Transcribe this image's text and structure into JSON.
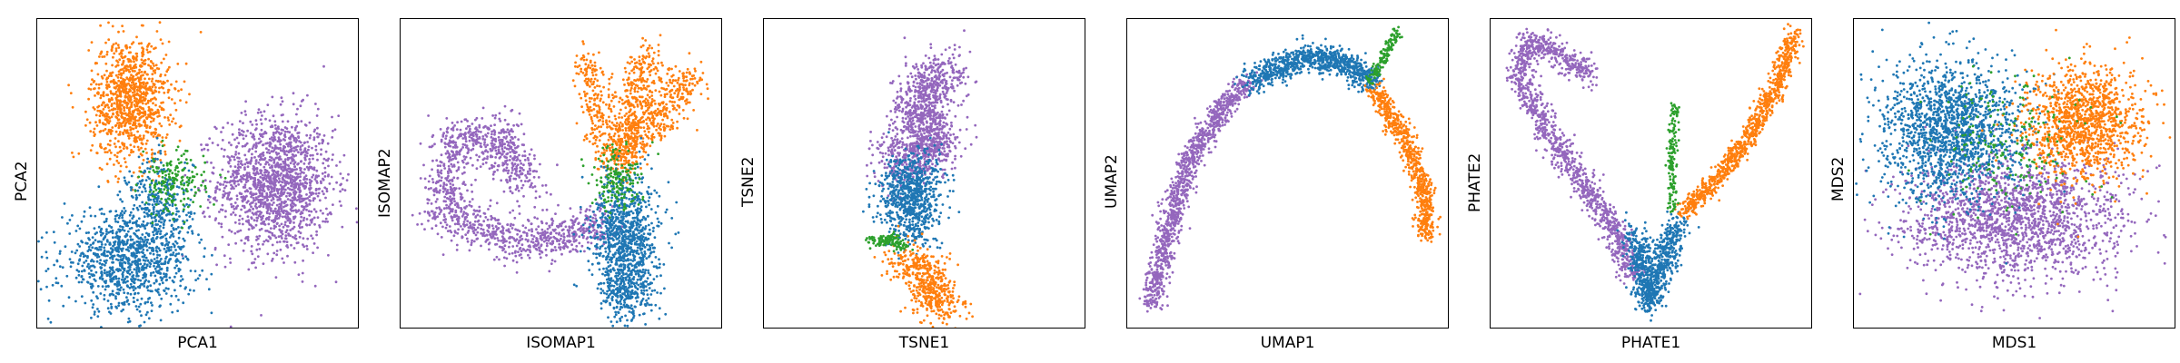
{
  "colors": {
    "blue": "#1f77b4",
    "orange": "#ff7f0e",
    "green": "#2ca02c",
    "purple": "#9467bd"
  },
  "chart_data": [
    {
      "type": "scatter",
      "xlabel": "PCA1",
      "ylabel": "PCA2",
      "grid": false,
      "xticks": [],
      "yticks": [],
      "series": [
        {
          "color": "#9467bd",
          "blobs": [
            {
              "cx": 0.74,
              "cy": 0.47,
              "sx": 0.09,
              "sy": 0.11,
              "n": 1500
            }
          ]
        },
        {
          "color": "#ff7f0e",
          "blobs": [
            {
              "cx": 0.29,
              "cy": 0.74,
              "sx": 0.06,
              "sy": 0.1,
              "n": 1000
            }
          ]
        },
        {
          "color": "#1f77b4",
          "blobs": [
            {
              "cx": 0.28,
              "cy": 0.22,
              "sx": 0.1,
              "sy": 0.08,
              "n": 1000
            },
            {
              "cx": 0.38,
              "cy": 0.4,
              "sx": 0.05,
              "sy": 0.08,
              "n": 300
            }
          ]
        },
        {
          "color": "#2ca02c",
          "blobs": [
            {
              "cx": 0.42,
              "cy": 0.47,
              "sx": 0.05,
              "sy": 0.05,
              "n": 180
            }
          ]
        }
      ]
    },
    {
      "type": "scatter",
      "xlabel": "ISOMAP1",
      "ylabel": "ISOMAP2",
      "grid": false,
      "xticks": [],
      "yticks": [],
      "series": [
        {
          "color": "#9467bd",
          "curve": [
            [
              0.64,
              0.34
            ],
            [
              0.38,
              0.28
            ],
            [
              0.13,
              0.38
            ],
            [
              0.17,
              0.62
            ],
            [
              0.32,
              0.62
            ],
            [
              0.33,
              0.52
            ],
            [
              0.42,
              0.48
            ]
          ],
          "spread": 0.035,
          "n": 1300
        },
        {
          "color": "#ff7f0e",
          "curves": [
            {
              "pts": [
                [
                  0.66,
                  0.52
                ],
                [
                  0.72,
                  0.72
                ],
                [
                  0.78,
                  0.9
                ]
              ],
              "spread": 0.03,
              "n": 400
            },
            {
              "pts": [
                [
                  0.68,
                  0.55
                ],
                [
                  0.84,
                  0.73
                ],
                [
                  0.9,
                  0.82
                ]
              ],
              "spread": 0.03,
              "n": 400
            },
            {
              "pts": [
                [
                  0.62,
                  0.6
                ],
                [
                  0.6,
                  0.8
                ],
                [
                  0.58,
                  0.88
                ]
              ],
              "spread": 0.025,
              "n": 200
            }
          ]
        },
        {
          "color": "#1f77b4",
          "blobs": [
            {
              "cx": 0.7,
              "cy": 0.3,
              "sx": 0.05,
              "sy": 0.1,
              "n": 900
            },
            {
              "cx": 0.7,
              "cy": 0.12,
              "sx": 0.04,
              "sy": 0.05,
              "n": 250
            }
          ]
        },
        {
          "color": "#2ca02c",
          "blobs": [
            {
              "cx": 0.67,
              "cy": 0.48,
              "sx": 0.04,
              "sy": 0.05,
              "n": 160
            }
          ]
        }
      ]
    },
    {
      "type": "scatter",
      "xlabel": "TSNE1",
      "ylabel": "TSNE2",
      "grid": false,
      "xticks": [],
      "yticks": [],
      "series": [
        {
          "color": "#9467bd",
          "curve": [
            [
              0.4,
              0.53
            ],
            [
              0.53,
              0.6
            ],
            [
              0.47,
              0.73
            ],
            [
              0.56,
              0.84
            ]
          ],
          "spread": 0.045,
          "n": 1200
        },
        {
          "color": "#1f77b4",
          "curve": [
            [
              0.48,
              0.33
            ],
            [
              0.43,
              0.42
            ],
            [
              0.48,
              0.52
            ]
          ],
          "spread": 0.045,
          "n": 800
        },
        {
          "color": "#ff7f0e",
          "curve": [
            [
              0.42,
              0.23
            ],
            [
              0.5,
              0.18
            ],
            [
              0.52,
              0.1
            ],
            [
              0.58,
              0.08
            ]
          ],
          "spread": 0.035,
          "n": 500
        },
        {
          "color": "#2ca02c",
          "curve": [
            [
              0.33,
              0.28
            ],
            [
              0.4,
              0.29
            ],
            [
              0.44,
              0.26
            ]
          ],
          "spread": 0.01,
          "n": 120
        }
      ]
    },
    {
      "type": "scatter",
      "xlabel": "UMAP1",
      "ylabel": "UMAP2",
      "grid": false,
      "xticks": [],
      "yticks": [],
      "series": [
        {
          "color": "#9467bd",
          "curve": [
            [
              0.07,
              0.08
            ],
            [
              0.12,
              0.28
            ],
            [
              0.18,
              0.52
            ],
            [
              0.3,
              0.72
            ],
            [
              0.38,
              0.8
            ]
          ],
          "spread": 0.018,
          "n": 1100
        },
        {
          "color": "#1f77b4",
          "curve": [
            [
              0.38,
              0.8
            ],
            [
              0.55,
              0.88
            ],
            [
              0.68,
              0.86
            ],
            [
              0.76,
              0.8
            ]
          ],
          "spread": 0.022,
          "n": 900
        },
        {
          "color": "#ff7f0e",
          "curve": [
            [
              0.76,
              0.78
            ],
            [
              0.86,
              0.62
            ],
            [
              0.92,
              0.45
            ],
            [
              0.93,
              0.3
            ]
          ],
          "spread": 0.015,
          "n": 700
        },
        {
          "color": "#2ca02c",
          "curve": [
            [
              0.75,
              0.8
            ],
            [
              0.79,
              0.86
            ],
            [
              0.82,
              0.93
            ],
            [
              0.84,
              0.96
            ]
          ],
          "spread": 0.008,
          "n": 120
        }
      ]
    },
    {
      "type": "scatter",
      "xlabel": "PHATE1",
      "ylabel": "PHATE2",
      "grid": false,
      "xticks": [],
      "yticks": [],
      "series": [
        {
          "color": "#9467bd",
          "curve": [
            [
              0.35,
              0.38
            ],
            [
              0.2,
              0.6
            ],
            [
              0.08,
              0.82
            ],
            [
              0.12,
              0.93
            ],
            [
              0.2,
              0.9
            ],
            [
              0.31,
              0.82
            ]
          ],
          "spread": 0.02,
          "n": 1000
        },
        {
          "color": "#9467bd",
          "curve": [
            [
              0.35,
              0.38
            ],
            [
              0.4,
              0.28
            ],
            [
              0.44,
              0.18
            ]
          ],
          "spread": 0.02,
          "n": 300
        },
        {
          "color": "#1f77b4",
          "curve": [
            [
              0.44,
              0.32
            ],
            [
              0.47,
              0.2
            ],
            [
              0.49,
              0.08
            ],
            [
              0.53,
              0.2
            ],
            [
              0.58,
              0.35
            ]
          ],
          "spread": 0.02,
          "n": 800
        },
        {
          "color": "#ff7f0e",
          "curve": [
            [
              0.6,
              0.38
            ],
            [
              0.72,
              0.5
            ],
            [
              0.82,
              0.65
            ],
            [
              0.9,
              0.82
            ],
            [
              0.94,
              0.95
            ]
          ],
          "spread": 0.015,
          "n": 900
        },
        {
          "color": "#2ca02c",
          "curve": [
            [
              0.57,
              0.38
            ],
            [
              0.56,
              0.52
            ],
            [
              0.57,
              0.72
            ]
          ],
          "spread": 0.007,
          "n": 150
        }
      ]
    },
    {
      "type": "scatter",
      "xlabel": "MDS1",
      "ylabel": "MDS2",
      "grid": false,
      "xticks": [],
      "yticks": [],
      "series": [
        {
          "color": "#9467bd",
          "blobs": [
            {
              "cx": 0.5,
              "cy": 0.36,
              "sx": 0.17,
              "sy": 0.1,
              "n": 1800
            }
          ]
        },
        {
          "color": "#1f77b4",
          "blobs": [
            {
              "cx": 0.3,
              "cy": 0.64,
              "sx": 0.11,
              "sy": 0.11,
              "n": 1600
            }
          ]
        },
        {
          "color": "#ff7f0e",
          "blobs": [
            {
              "cx": 0.71,
              "cy": 0.67,
              "sx": 0.09,
              "sy": 0.09,
              "n": 1200
            }
          ]
        },
        {
          "color": "#2ca02c",
          "blobs": [
            {
              "cx": 0.5,
              "cy": 0.6,
              "sx": 0.14,
              "sy": 0.1,
              "n": 200
            }
          ]
        }
      ]
    }
  ]
}
